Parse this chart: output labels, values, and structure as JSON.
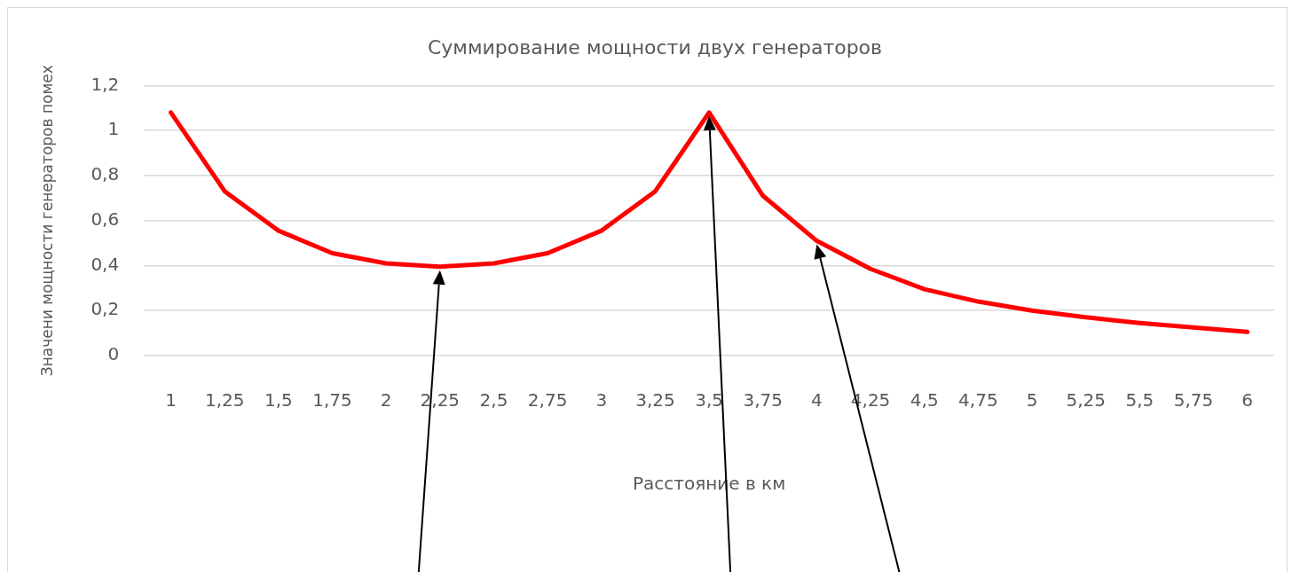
{
  "chart_data": {
    "type": "line",
    "title": "Суммирование мощности двух генераторов",
    "xlabel": "Расстояние в км",
    "ylabel": "Значени мощности генераторов помех",
    "categories": [
      "1",
      "1,25",
      "1,5",
      "1,75",
      "2",
      "2,25",
      "2,5",
      "2,75",
      "3",
      "3,25",
      "3,5",
      "3,75",
      "4",
      "4,25",
      "4,5",
      "4,75",
      "5",
      "5,25",
      "5,5",
      "5,75",
      "6"
    ],
    "series": [
      {
        "color": "#ff0000",
        "values": [
          1.08,
          0.73,
          0.555,
          0.455,
          0.41,
          0.395,
          0.41,
          0.455,
          0.555,
          0.73,
          1.08,
          0.71,
          0.51,
          0.385,
          0.295,
          0.24,
          0.2,
          0.17,
          0.145,
          0.125,
          0.105
        ]
      }
    ],
    "ylim": [
      0,
      1.2
    ],
    "yticks": [
      0,
      {
        "value": 0.2,
        "label": "0,2"
      },
      {
        "value": 0.4,
        "label": "0,4"
      },
      {
        "value": 0.6,
        "label": "0,6"
      },
      {
        "value": 0.8,
        "label": "0,8"
      },
      1,
      {
        "value": 1.2,
        "label": "1,2"
      }
    ],
    "grid": "y",
    "legend": false,
    "marker": "none",
    "line_style": "solid"
  }
}
